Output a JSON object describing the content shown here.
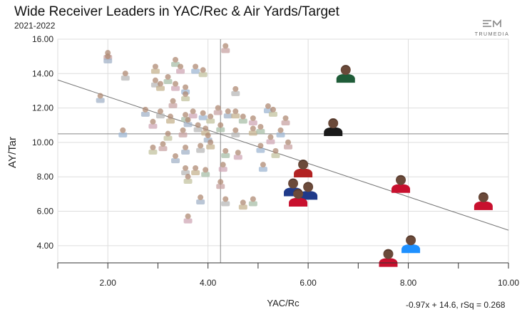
{
  "header": {
    "title": "Wide Receiver Leaders in YAC/Rec & Air Yards/Target",
    "subtitle": "2021-2022",
    "logo_text": "TRUMEDIA"
  },
  "regression_label": "-0.97x + 14.6, rSq = 0.268",
  "chart_data": {
    "type": "scatter",
    "title": "Wide Receiver Leaders in YAC/Rec & Air Yards/Target",
    "subtitle": "2021-2022",
    "xlabel": "YAC/Rc",
    "ylabel": "AY/Tar",
    "xlim": [
      1.0,
      10.0
    ],
    "ylim": [
      3.0,
      16.0
    ],
    "xticks": [
      "2.00",
      "4.00",
      "6.00",
      "8.00",
      "10.00"
    ],
    "yticks": [
      "4.00",
      "6.00",
      "8.00",
      "10.00",
      "12.00",
      "14.00",
      "16.00"
    ],
    "grid": true,
    "reference_lines": {
      "x_mean": 4.25,
      "y_mean": 10.5
    },
    "trendline": {
      "slope": -0.97,
      "intercept": 14.6,
      "r_squared": 0.268
    },
    "colors": {
      "grid": "#dddddd",
      "axis": "#333333",
      "ref": "#888888",
      "trend": "#777777"
    },
    "highlighted_points": [
      {
        "x": 6.75,
        "y": 13.8,
        "jersey": "#1f5c38"
      },
      {
        "x": 6.5,
        "y": 10.7,
        "jersey": "#1a1a1a"
      },
      {
        "x": 5.9,
        "y": 8.3,
        "jersey": "#b22222"
      },
      {
        "x": 5.7,
        "y": 7.2,
        "jersey": "#1f3a8a"
      },
      {
        "x": 6.0,
        "y": 7.0,
        "jersey": "#1f3a8a"
      },
      {
        "x": 5.8,
        "y": 6.6,
        "jersey": "#c8102e"
      },
      {
        "x": 7.85,
        "y": 7.4,
        "jersey": "#c8102e"
      },
      {
        "x": 9.5,
        "y": 6.4,
        "jersey": "#c8102e"
      },
      {
        "x": 7.6,
        "y": 3.1,
        "jersey": "#c8102e"
      },
      {
        "x": 8.05,
        "y": 3.9,
        "jersey": "#1e90ff"
      }
    ],
    "background_points": [
      {
        "x": 2.0,
        "y": 15.0
      },
      {
        "x": 2.0,
        "y": 14.8
      },
      {
        "x": 2.35,
        "y": 13.8
      },
      {
        "x": 2.95,
        "y": 14.2
      },
      {
        "x": 3.35,
        "y": 14.6
      },
      {
        "x": 3.45,
        "y": 14.2
      },
      {
        "x": 3.75,
        "y": 14.2
      },
      {
        "x": 3.9,
        "y": 14.0
      },
      {
        "x": 4.35,
        "y": 15.4
      },
      {
        "x": 1.85,
        "y": 12.5
      },
      {
        "x": 2.95,
        "y": 13.4
      },
      {
        "x": 3.05,
        "y": 13.2
      },
      {
        "x": 3.2,
        "y": 13.6
      },
      {
        "x": 3.35,
        "y": 13.2
      },
      {
        "x": 3.55,
        "y": 13.0
      },
      {
        "x": 3.55,
        "y": 12.6
      },
      {
        "x": 3.3,
        "y": 12.2
      },
      {
        "x": 2.75,
        "y": 11.7
      },
      {
        "x": 3.05,
        "y": 11.6
      },
      {
        "x": 3.25,
        "y": 11.3
      },
      {
        "x": 3.55,
        "y": 11.4
      },
      {
        "x": 3.7,
        "y": 11.6
      },
      {
        "x": 3.9,
        "y": 11.5
      },
      {
        "x": 4.05,
        "y": 11.3
      },
      {
        "x": 4.2,
        "y": 11.8
      },
      {
        "x": 4.4,
        "y": 11.6
      },
      {
        "x": 4.55,
        "y": 12.9
      },
      {
        "x": 4.55,
        "y": 11.6
      },
      {
        "x": 4.7,
        "y": 11.3
      },
      {
        "x": 4.9,
        "y": 11.2
      },
      {
        "x": 5.2,
        "y": 11.9
      },
      {
        "x": 5.3,
        "y": 11.7
      },
      {
        "x": 5.55,
        "y": 11.2
      },
      {
        "x": 3.6,
        "y": 11.1
      },
      {
        "x": 3.8,
        "y": 10.8
      },
      {
        "x": 3.95,
        "y": 10.6
      },
      {
        "x": 4.25,
        "y": 10.8
      },
      {
        "x": 2.9,
        "y": 11.0
      },
      {
        "x": 2.3,
        "y": 10.5
      },
      {
        "x": 3.2,
        "y": 10.3
      },
      {
        "x": 3.5,
        "y": 10.5
      },
      {
        "x": 4.0,
        "y": 10.2
      },
      {
        "x": 4.55,
        "y": 10.5
      },
      {
        "x": 4.9,
        "y": 10.6
      },
      {
        "x": 5.05,
        "y": 10.7
      },
      {
        "x": 5.25,
        "y": 10.1
      },
      {
        "x": 5.45,
        "y": 10.5
      },
      {
        "x": 2.9,
        "y": 9.5
      },
      {
        "x": 3.1,
        "y": 9.7
      },
      {
        "x": 3.55,
        "y": 9.5
      },
      {
        "x": 3.85,
        "y": 9.6
      },
      {
        "x": 4.05,
        "y": 9.8
      },
      {
        "x": 4.35,
        "y": 9.3
      },
      {
        "x": 4.6,
        "y": 9.2
      },
      {
        "x": 5.05,
        "y": 9.6
      },
      {
        "x": 5.35,
        "y": 9.3
      },
      {
        "x": 5.6,
        "y": 9.8
      },
      {
        "x": 3.35,
        "y": 9.0
      },
      {
        "x": 3.55,
        "y": 8.3
      },
      {
        "x": 3.75,
        "y": 8.3
      },
      {
        "x": 3.95,
        "y": 8.2
      },
      {
        "x": 4.3,
        "y": 8.5
      },
      {
        "x": 5.1,
        "y": 8.5
      },
      {
        "x": 3.6,
        "y": 7.8
      },
      {
        "x": 4.25,
        "y": 7.5
      },
      {
        "x": 3.85,
        "y": 6.6
      },
      {
        "x": 4.35,
        "y": 6.5
      },
      {
        "x": 4.7,
        "y": 6.3
      },
      {
        "x": 4.9,
        "y": 6.5
      },
      {
        "x": 3.6,
        "y": 5.5
      }
    ]
  }
}
